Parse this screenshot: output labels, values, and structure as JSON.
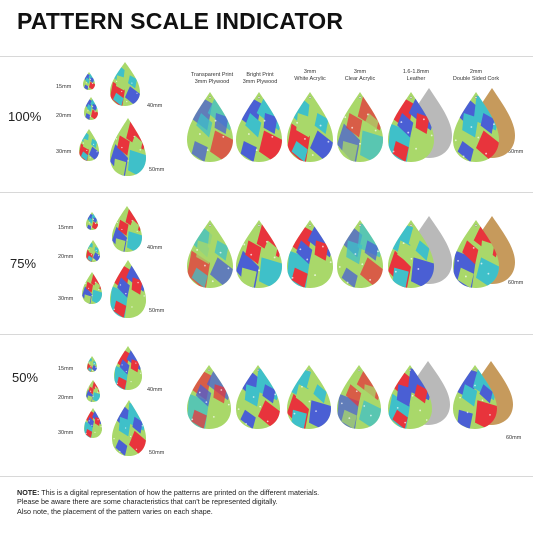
{
  "title": "PATTERN SCALE INDICATOR",
  "sizes": {
    "s15": "15mm",
    "s20": "20mm",
    "s30": "30mm",
    "s40": "40mm",
    "s50": "50mm",
    "s60": "60mm"
  },
  "materials": [
    {
      "line1": "Transparent Print",
      "line2": "3mm Plywood"
    },
    {
      "line1": "Bright Print",
      "line2": "3mm Plywood"
    },
    {
      "line1": "3mm",
      "line2": "White Acrylic"
    },
    {
      "line1": "3mm",
      "line2": "Clear Acrylic"
    },
    {
      "line1": "1.6-1.8mm",
      "line2": "Leather"
    },
    {
      "line1": "2mm",
      "line2": "Double Sided Cork"
    }
  ],
  "rows": [
    {
      "scale": "100%"
    },
    {
      "scale": "75%"
    },
    {
      "scale": "50%"
    }
  ],
  "note": {
    "label": "NOTE:",
    "line1": " This is a digital representation of how the patterns are printed on the different materials.",
    "line2": "Please be aware there are some characteristics that can't be represented digitally.",
    "line3": "Also note, the placement of the pattern varies on each shape."
  },
  "colors": {
    "red": "#e8343c",
    "blue": "#4a5fd4",
    "teal": "#3fc0c9",
    "green": "#a9d86a",
    "leather": "#b9b9b9",
    "cork": "#c69a5c"
  }
}
